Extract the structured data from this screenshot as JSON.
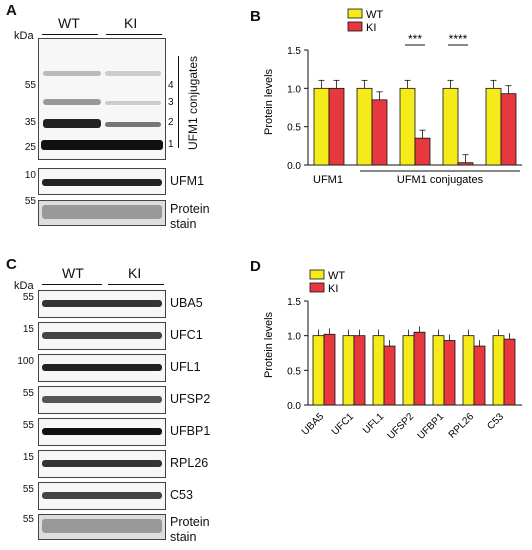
{
  "panel_a": {
    "letter": "A",
    "kda": "kDa",
    "group_wt": "WT",
    "group_ki": "KI",
    "conj_title": "UFM1 conjugates",
    "conj_numbers": [
      "4",
      "3",
      "2",
      "1"
    ],
    "mw_main": [
      "55",
      "35",
      "25"
    ],
    "mw_ufm1": "10",
    "mw_stain": "55",
    "ufm1_label": "UFM1",
    "stain_label_1": "Protein",
    "stain_label_2": "stain"
  },
  "panel_b": {
    "letter": "B",
    "chart_data": {
      "type": "bar",
      "legend": [
        "WT",
        "KI"
      ],
      "legend_placement": "top",
      "ylabel": "Protein levels",
      "ylim": [
        0,
        1.5
      ],
      "yticks": [
        "0.0",
        "0.5",
        "1.0",
        "1.5"
      ],
      "group_labels": [
        "UFM1",
        "UFM1 conjugates"
      ],
      "series": [
        {
          "name": "WT",
          "values": [
            1.0,
            1.0,
            1.0,
            1.0,
            1.0
          ]
        },
        {
          "name": "KI",
          "values": [
            1.0,
            0.85,
            0.35,
            0.03,
            0.93
          ]
        }
      ],
      "significance": [
        "",
        "",
        "***",
        "****",
        ""
      ],
      "colors": {
        "WT": "#f5eb1a",
        "KI": "#e8383f"
      }
    }
  },
  "panel_c": {
    "letter": "C",
    "kda": "kDa",
    "group_wt": "WT",
    "group_ki": "KI",
    "blots": [
      {
        "mw": "55",
        "label": "UBA5"
      },
      {
        "mw": "15",
        "label": "UFC1"
      },
      {
        "mw": "100",
        "label": "UFL1"
      },
      {
        "mw": "55",
        "label": "UFSP2"
      },
      {
        "mw": "55",
        "label": "UFBP1"
      },
      {
        "mw": "15",
        "label": "RPL26"
      },
      {
        "mw": "55",
        "label": "C53"
      }
    ],
    "stain_mw": "55",
    "stain_label_1": "Protein",
    "stain_label_2": "stain"
  },
  "panel_d": {
    "letter": "D",
    "chart_data": {
      "type": "bar",
      "legend": [
        "WT",
        "KI"
      ],
      "legend_placement": "top",
      "ylabel": "Protein levels",
      "ylim": [
        0,
        1.5
      ],
      "yticks": [
        "0.0",
        "0.5",
        "1.0",
        "1.5"
      ],
      "categories": [
        "UBA5",
        "UFC1",
        "UFL1",
        "UFSP2",
        "UFBP1",
        "RPL26",
        "C53"
      ],
      "series": [
        {
          "name": "WT",
          "values": [
            1.0,
            1.0,
            1.0,
            1.0,
            1.0,
            1.0,
            1.0
          ]
        },
        {
          "name": "KI",
          "values": [
            1.02,
            1.0,
            0.85,
            1.05,
            0.93,
            0.85,
            0.95
          ]
        }
      ],
      "colors": {
        "WT": "#f5eb1a",
        "KI": "#e8383f"
      }
    }
  }
}
